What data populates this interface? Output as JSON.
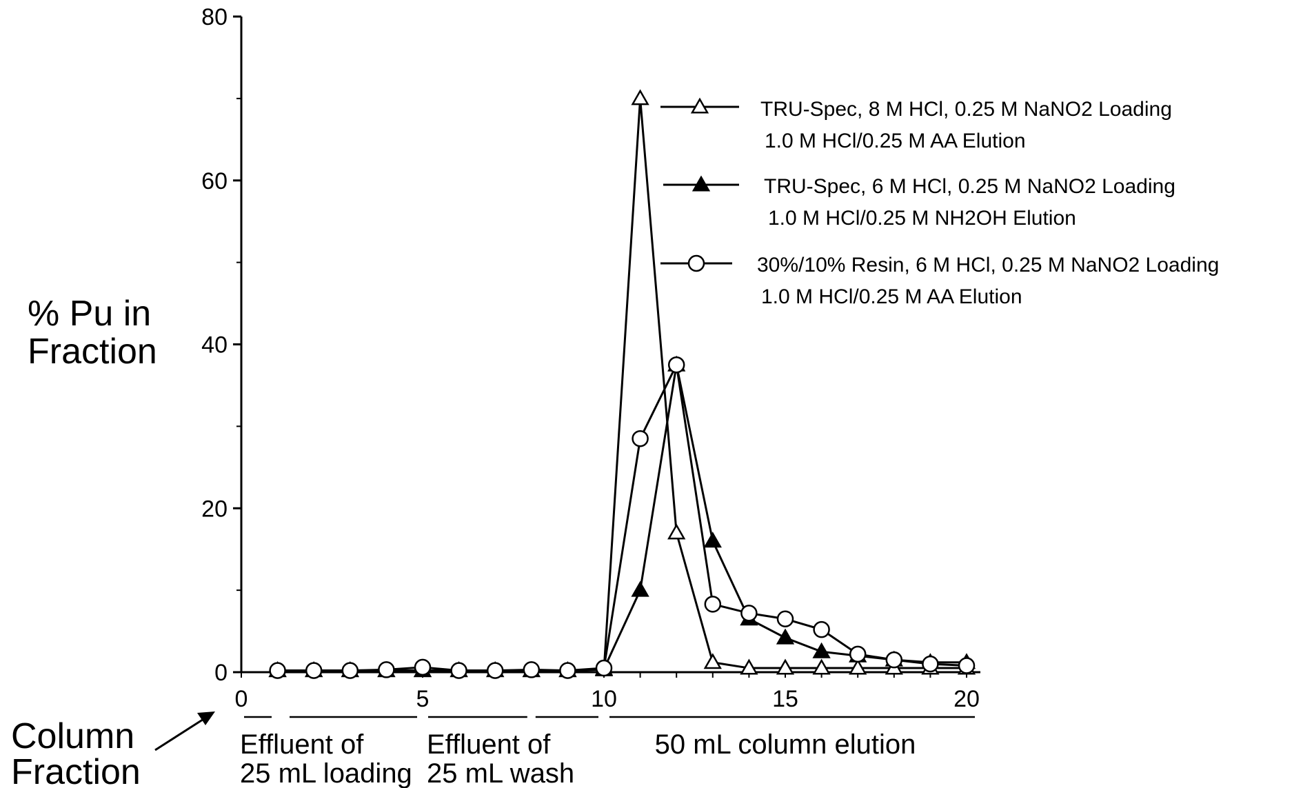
{
  "chart_data": {
    "type": "line",
    "title": "",
    "ylabel": [
      "% Pu in",
      "Fraction"
    ],
    "xlabel": [
      "Column",
      "Fraction"
    ],
    "xlim": [
      0,
      20
    ],
    "ylim": [
      0,
      80
    ],
    "x_ticks": [
      0,
      5,
      10,
      15,
      20
    ],
    "y_ticks": [
      0,
      20,
      40,
      60,
      80
    ],
    "grid": false,
    "legend_position": "top-right",
    "series": [
      {
        "name": [
          "TRU-Spec, 8 M HCl, 0.25 M NaNO2 Loading",
          "1.0 M HCl/0.25 M AA Elution"
        ],
        "marker": "triangle-open",
        "x": [
          1,
          2,
          3,
          4,
          5,
          6,
          7,
          8,
          9,
          10,
          11,
          12,
          13,
          14,
          15,
          16,
          17,
          18,
          19,
          20
        ],
        "y": [
          0.2,
          0.2,
          0.2,
          0.2,
          0.2,
          0.2,
          0.2,
          0.2,
          0.2,
          0.3,
          70,
          17,
          1.2,
          0.5,
          0.5,
          0.5,
          0.5,
          0.5,
          0.5,
          0.5
        ]
      },
      {
        "name": [
          "TRU-Spec, 6 M HCl, 0.25 M NaNO2 Loading",
          "1.0 M HCl/0.25 M NH2OH Elution"
        ],
        "marker": "triangle-filled",
        "x": [
          1,
          2,
          3,
          4,
          5,
          6,
          7,
          8,
          9,
          10,
          11,
          12,
          13,
          14,
          15,
          16,
          17,
          18,
          19,
          20
        ],
        "y": [
          0.2,
          0.2,
          0.2,
          0.2,
          0.2,
          0.2,
          0.2,
          0.2,
          0.2,
          0.4,
          10,
          37.5,
          16,
          6.5,
          4.2,
          2.5,
          2.0,
          1.5,
          1.2,
          1.2
        ]
      },
      {
        "name": [
          "30%/10% Resin, 6 M HCl, 0.25 M NaNO2 Loading",
          "1.0 M HCl/0.25 M AA Elution"
        ],
        "marker": "circle-open",
        "x": [
          1,
          2,
          3,
          4,
          5,
          6,
          7,
          8,
          9,
          10,
          11,
          12,
          13,
          14,
          15,
          16,
          17,
          18,
          19,
          20
        ],
        "y": [
          0.2,
          0.2,
          0.2,
          0.3,
          0.6,
          0.2,
          0.2,
          0.3,
          0.2,
          0.5,
          28.5,
          37.5,
          8.3,
          7.2,
          6.5,
          5.2,
          2.2,
          1.5,
          1.0,
          0.8
        ]
      }
    ],
    "fraction_groups": [
      {
        "label": [
          "Effluent of",
          "25 mL loading"
        ],
        "from": 0,
        "to": 5
      },
      {
        "label": [
          "Effluent of",
          "25 mL wash"
        ],
        "from": 5,
        "to": 10
      },
      {
        "label": [
          "50 mL column elution"
        ],
        "from": 10,
        "to": 20
      }
    ]
  }
}
